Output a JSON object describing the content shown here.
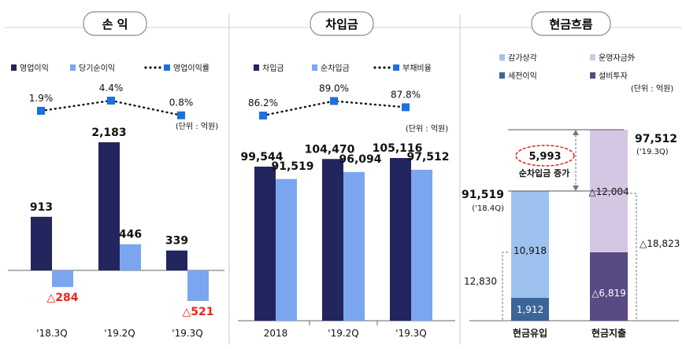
{
  "colors": {
    "dark": "#22255e",
    "light": "#7ba6ef",
    "red": "#e8241c",
    "line": "#111111",
    "marker": "#1e6fe0",
    "cf_light": "#9ec2ef",
    "cf_dark": "#3d6698",
    "cf_lavender": "#d3c7e4",
    "cf_purple": "#5a4a83"
  },
  "chart_data": [
    {
      "type": "bar",
      "title": "손 익",
      "categories": [
        "'18.3Q",
        "'19.2Q",
        "'19.3Q"
      ],
      "series": [
        {
          "name": "영업이익",
          "values": [
            913,
            2183,
            339
          ]
        },
        {
          "name": "당기순이익",
          "values": [
            -284,
            446,
            -521
          ]
        }
      ],
      "value_labels": {
        "영업이익": [
          "913",
          "2,183",
          "339"
        ],
        "당기순이익": [
          "△284",
          "446",
          "△521"
        ]
      },
      "line_series": {
        "name": "영업이익률",
        "values": [
          1.9,
          4.4,
          0.8
        ],
        "labels": [
          "1.9%",
          "4.4%",
          "0.8%"
        ]
      },
      "unit": "(단위 : 억원)",
      "legend": "top"
    },
    {
      "type": "bar",
      "title": "차입금",
      "categories": [
        "2018",
        "'19.2Q",
        "'19.3Q"
      ],
      "series": [
        {
          "name": "차입금",
          "values": [
            99544,
            104470,
            105116
          ]
        },
        {
          "name": "순차입금",
          "values": [
            91519,
            96094,
            97512
          ]
        }
      ],
      "value_labels": {
        "차입금": [
          "99,544",
          "104,470",
          "105,116"
        ],
        "순차입금": [
          "91,519",
          "96,094",
          "97,512"
        ]
      },
      "line_series": {
        "name": "부채비율",
        "values": [
          86.2,
          89.0,
          87.8
        ],
        "labels": [
          "86.2%",
          "89.0%",
          "87.8%"
        ]
      },
      "unit": "(단위 : 억원)",
      "legend": "top"
    },
    {
      "type": "bar",
      "title": "현금흐름",
      "categories": [
        "현금유입",
        "현금지출"
      ],
      "legend_items": [
        "감가상각",
        "운영자금外",
        "세전이익",
        "설비투자"
      ],
      "unit": "(단위 : 억원)",
      "inflow": {
        "total": 91519,
        "total_label": "91,519",
        "period": "('18.4Q)",
        "segments": [
          {
            "name": "세전이익",
            "value": 1912,
            "label": "1,912"
          },
          {
            "name": "감가상각",
            "value": 10918,
            "label": "10,918"
          }
        ],
        "bracket_label": "12,830"
      },
      "outflow": {
        "total": 97512,
        "total_label": "97,512",
        "period": "('19.3Q)",
        "segments": [
          {
            "name": "설비투자",
            "value": 6819,
            "label": "△6,819"
          },
          {
            "name": "운영자금外",
            "value": 12004,
            "label": "△12,004"
          }
        ],
        "bracket_label": "△18,823"
      },
      "callout": {
        "value": "5,993",
        "text": "순차입금 증가"
      }
    }
  ]
}
